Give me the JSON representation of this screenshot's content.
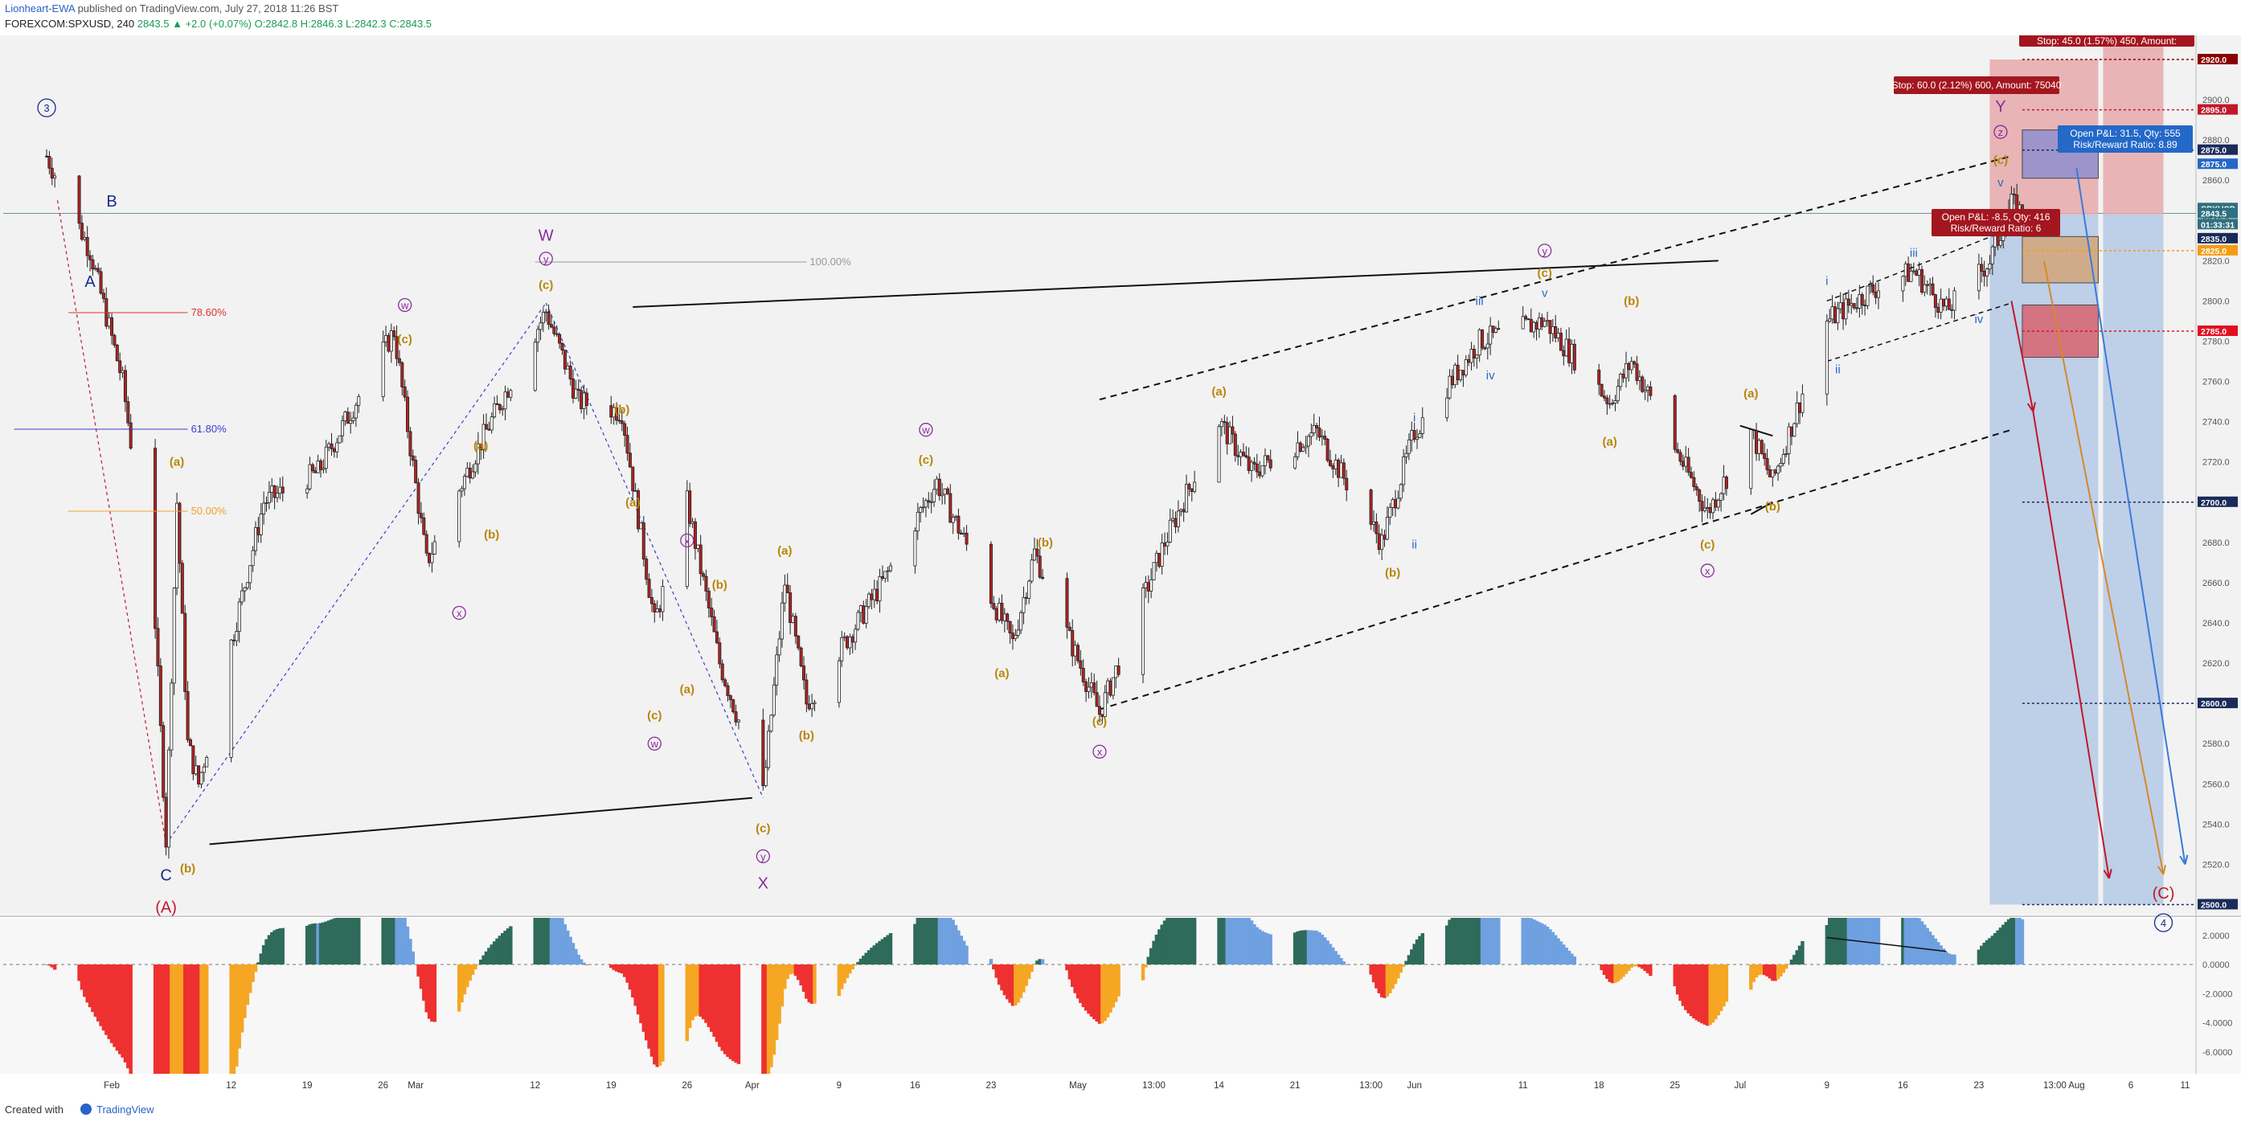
{
  "header": {
    "author": "Lionheart-EWA",
    "published_text": "published on TradingView.com, July 27, 2018 11:26 BST",
    "symbol": "FOREXCOM:SPXUSD, 240",
    "ohlc": "2843.5 ▲ +2.0 (+0.07%) O:2842.8 H:2846.3 L:2842.3 C:2843.5"
  },
  "footer": {
    "created_with": "Created with",
    "brand": "TradingView"
  },
  "colors": {
    "background": "#f2f2f2",
    "candle": "#202020",
    "candle_down_fill": "#b22222",
    "wave_orange": "#b8860b",
    "wave_purple": "#8a2c9b",
    "wave_navy": "#1a2b8c",
    "wave_blue": "#2468c8",
    "wave_red": "#c0182a",
    "osc_green": "#2e6b5a",
    "osc_blue": "#6fa0e0",
    "osc_red": "#ee3030",
    "osc_orange": "#f5a623"
  },
  "chart_data": {
    "type": "candlestick",
    "price_axis": {
      "ylim": [
        2495,
        2932
      ],
      "ticks": [
        2520,
        2540,
        2560,
        2580,
        2620,
        2640,
        2660,
        2680,
        2720,
        2740,
        2760,
        2780,
        2800,
        2820,
        2840,
        2860,
        2880,
        2900
      ]
    },
    "time_axis": {
      "labels": [
        "Feb",
        "12",
        "19",
        "26",
        "Mar",
        "12",
        "19",
        "26",
        "Apr",
        "9",
        "16",
        "23",
        "May",
        "13:00",
        "14",
        "21",
        "13:00",
        "Jun",
        "11",
        "18",
        "25",
        "Jul",
        "9",
        "16",
        "23",
        "13:00",
        "Aug",
        "6",
        "11"
      ]
    },
    "price_path": [
      {
        "date": "2018-01-26",
        "price": 2872
      },
      {
        "date": "2018-01-30",
        "price": 2825
      },
      {
        "date": "2018-02-02",
        "price": 2760
      },
      {
        "date": "2018-02-05",
        "price": 2640
      },
      {
        "date": "2018-02-06",
        "price": 2532
      },
      {
        "date": "2018-02-07",
        "price": 2700
      },
      {
        "date": "2018-02-08",
        "price": 2580
      },
      {
        "date": "2018-02-09",
        "price": 2560
      },
      {
        "date": "2018-02-15",
        "price": 2700
      },
      {
        "date": "2018-02-20",
        "price": 2715
      },
      {
        "date": "2018-02-27",
        "price": 2785
      },
      {
        "date": "2018-03-02",
        "price": 2670
      },
      {
        "date": "2018-03-07",
        "price": 2730
      },
      {
        "date": "2018-03-13",
        "price": 2795
      },
      {
        "date": "2018-03-16",
        "price": 2750
      },
      {
        "date": "2018-03-20",
        "price": 2745
      },
      {
        "date": "2018-03-23",
        "price": 2640
      },
      {
        "date": "2018-03-26",
        "price": 2700
      },
      {
        "date": "2018-03-29",
        "price": 2620
      },
      {
        "date": "2018-04-02",
        "price": 2555
      },
      {
        "date": "2018-04-04",
        "price": 2660
      },
      {
        "date": "2018-04-06",
        "price": 2600
      },
      {
        "date": "2018-04-13",
        "price": 2660
      },
      {
        "date": "2018-04-18",
        "price": 2710
      },
      {
        "date": "2018-04-25",
        "price": 2630
      },
      {
        "date": "2018-04-27",
        "price": 2675
      },
      {
        "date": "2018-05-03",
        "price": 2595
      },
      {
        "date": "2018-05-09",
        "price": 2680
      },
      {
        "date": "2018-05-14",
        "price": 2740
      },
      {
        "date": "2018-05-17",
        "price": 2715
      },
      {
        "date": "2018-05-23",
        "price": 2735
      },
      {
        "date": "2018-05-29",
        "price": 2680
      },
      {
        "date": "2018-06-01",
        "price": 2735
      },
      {
        "date": "2018-06-07",
        "price": 2780
      },
      {
        "date": "2018-06-13",
        "price": 2790
      },
      {
        "date": "2018-06-19",
        "price": 2750
      },
      {
        "date": "2018-06-21",
        "price": 2770
      },
      {
        "date": "2018-06-28",
        "price": 2695
      },
      {
        "date": "2018-07-02",
        "price": 2735
      },
      {
        "date": "2018-07-04",
        "price": 2710
      },
      {
        "date": "2018-07-09",
        "price": 2790
      },
      {
        "date": "2018-07-13",
        "price": 2805
      },
      {
        "date": "2018-07-17",
        "price": 2815
      },
      {
        "date": "2018-07-20",
        "price": 2795
      },
      {
        "date": "2018-07-24",
        "price": 2820
      },
      {
        "date": "2018-07-26",
        "price": 2848
      },
      {
        "date": "2018-07-27",
        "price": 2843.5
      }
    ],
    "price_labels": [
      {
        "text": "2920.0",
        "price": 2920,
        "bg": "#8b0000"
      },
      {
        "text": "2895.0",
        "price": 2895,
        "bg": "#c0182a"
      },
      {
        "text": "2875.0",
        "price": 2875,
        "bg": "#1a2b5a"
      },
      {
        "text": "2875.0",
        "price": 2868,
        "bg": "#2468c8"
      },
      {
        "text": "SPXUSD",
        "price": 2846,
        "bg": "#2f6f7f"
      },
      {
        "text": "2843.5",
        "price": 2843.5,
        "bg": "#2f6f7f"
      },
      {
        "text": "01:33:31",
        "price": 2838,
        "bg": "#2f6f7f"
      },
      {
        "text": "2835.0",
        "price": 2831,
        "bg": "#1a2b5a"
      },
      {
        "text": "2825.0",
        "price": 2825,
        "bg": "#f39c12"
      },
      {
        "text": "2785.0",
        "price": 2785,
        "bg": "#e01020"
      },
      {
        "text": "2700.0",
        "price": 2700,
        "bg": "#1a2b5a"
      },
      {
        "text": "2600.0",
        "price": 2600,
        "bg": "#1a2b5a"
      },
      {
        "text": "2500.0",
        "price": 2500,
        "bg": "#1a2b5a"
      }
    ],
    "fib_levels": [
      {
        "label": "100.00%",
        "price": 2802
      },
      {
        "label": "78.60%",
        "price": 2800
      },
      {
        "label": "61.80%",
        "price": 2743
      },
      {
        "label": "50.00%",
        "price": 2702
      }
    ],
    "positions": [
      {
        "text": "Stop: 60.0 (2.12%) 600, Amount: 75040",
        "type": "stop"
      },
      {
        "text": "Stop: 45.0 (1.57%) 450, Amount:",
        "type": "stop"
      },
      {
        "text": "Open P&L: 31.5, Qty: 555",
        "line2": "Risk/Reward Ratio: 8.89",
        "type": "pnl"
      },
      {
        "text": "Open P&L: -8.5, Qty: 416",
        "line2": "Risk/Reward Ratio: 6",
        "type": "pnl"
      }
    ],
    "wave_labels": [
      {
        "text": "3",
        "circle": true,
        "color": "navy",
        "date": "2018-01-26",
        "price": 2894
      },
      {
        "text": "B",
        "color": "navy",
        "date": "2018-02-01",
        "price": 2847
      },
      {
        "text": "A",
        "color": "navy",
        "date": "2018-01-30",
        "price": 2807
      },
      {
        "text": "C",
        "color": "navy",
        "date": "2018-02-06",
        "price": 2512
      },
      {
        "text": "(A)",
        "color": "red",
        "date": "2018-02-06",
        "price": 2496
      },
      {
        "text": "(a)",
        "color": "orange",
        "date": "2018-02-07",
        "price": 2718
      },
      {
        "text": "(b)",
        "color": "orange",
        "date": "2018-02-08",
        "price": 2516
      },
      {
        "text": "w",
        "circle": true,
        "color": "purple",
        "date": "2018-02-28",
        "price": 2796
      },
      {
        "text": "(c)",
        "color": "orange",
        "date": "2018-02-28",
        "price": 2779
      },
      {
        "text": "(a)",
        "color": "orange",
        "date": "2018-03-07",
        "price": 2726
      },
      {
        "text": "(b)",
        "color": "orange",
        "date": "2018-03-08",
        "price": 2682
      },
      {
        "text": "x",
        "circle": true,
        "color": "purple",
        "date": "2018-03-05",
        "price": 2643
      },
      {
        "text": "W",
        "color": "purple",
        "date": "2018-03-13",
        "price": 2830
      },
      {
        "text": "y",
        "circle": true,
        "color": "purple",
        "date": "2018-03-13",
        "price": 2819
      },
      {
        "text": "(c)",
        "color": "orange",
        "date": "2018-03-13",
        "price": 2806
      },
      {
        "text": "(b)",
        "color": "orange",
        "date": "2018-03-20",
        "price": 2744
      },
      {
        "text": "(a)",
        "color": "orange",
        "date": "2018-03-21",
        "price": 2698
      },
      {
        "text": "x",
        "circle": true,
        "color": "purple",
        "date": "2018-03-26",
        "price": 2679
      },
      {
        "text": "(b)",
        "color": "orange",
        "date": "2018-03-29",
        "price": 2657
      },
      {
        "text": "(c)",
        "color": "orange",
        "date": "2018-03-23",
        "price": 2592
      },
      {
        "text": "w",
        "circle": true,
        "color": "purple",
        "date": "2018-03-23",
        "price": 2578
      },
      {
        "text": "(a)",
        "color": "orange",
        "date": "2018-03-26",
        "price": 2605
      },
      {
        "text": "(c)",
        "color": "orange",
        "date": "2018-04-02",
        "price": 2536
      },
      {
        "text": "y",
        "circle": true,
        "color": "purple",
        "date": "2018-04-02",
        "price": 2522
      },
      {
        "text": "X",
        "color": "purple",
        "date": "2018-04-02",
        "price": 2508
      },
      {
        "text": "(a)",
        "color": "orange",
        "date": "2018-04-04",
        "price": 2674
      },
      {
        "text": "(b)",
        "color": "orange",
        "date": "2018-04-06",
        "price": 2582
      },
      {
        "text": "w",
        "circle": true,
        "color": "purple",
        "date": "2018-04-17",
        "price": 2734
      },
      {
        "text": "(c)",
        "color": "orange",
        "date": "2018-04-17",
        "price": 2719
      },
      {
        "text": "(b)",
        "color": "orange",
        "date": "2018-04-28",
        "price": 2678
      },
      {
        "text": "(a)",
        "color": "orange",
        "date": "2018-04-24",
        "price": 2613
      },
      {
        "text": "(c)",
        "color": "orange",
        "date": "2018-05-03",
        "price": 2589
      },
      {
        "text": "x",
        "circle": true,
        "color": "purple",
        "date": "2018-05-03",
        "price": 2574
      },
      {
        "text": "(a)",
        "color": "orange",
        "date": "2018-05-14",
        "price": 2753
      },
      {
        "text": "(b)",
        "color": "orange",
        "date": "2018-05-30",
        "price": 2663
      },
      {
        "text": "i",
        "color": "blue",
        "date": "2018-06-01",
        "price": 2740
      },
      {
        "text": "ii",
        "color": "blue",
        "date": "2018-06-01",
        "price": 2677
      },
      {
        "text": "iii",
        "color": "blue",
        "date": "2018-06-07",
        "price": 2798
      },
      {
        "text": "iv",
        "color": "blue",
        "date": "2018-06-08",
        "price": 2761
      },
      {
        "text": "y",
        "circle": true,
        "color": "purple",
        "date": "2018-06-13",
        "price": 2823
      },
      {
        "text": "(c)",
        "color": "orange",
        "date": "2018-06-13",
        "price": 2812
      },
      {
        "text": "v",
        "color": "blue",
        "date": "2018-06-13",
        "price": 2802
      },
      {
        "text": "(b)",
        "color": "orange",
        "date": "2018-06-21",
        "price": 2798
      },
      {
        "text": "(a)",
        "color": "orange",
        "date": "2018-06-19",
        "price": 2728
      },
      {
        "text": "(a)",
        "color": "orange",
        "date": "2018-07-02",
        "price": 2752
      },
      {
        "text": "(b)",
        "color": "orange",
        "date": "2018-07-04",
        "price": 2696
      },
      {
        "text": "(c)",
        "color": "orange",
        "date": "2018-06-28",
        "price": 2677
      },
      {
        "text": "x",
        "circle": true,
        "color": "purple",
        "date": "2018-06-28",
        "price": 2664
      },
      {
        "text": "i",
        "color": "blue",
        "date": "2018-07-09",
        "price": 2808
      },
      {
        "text": "ii",
        "color": "blue",
        "date": "2018-07-10",
        "price": 2764
      },
      {
        "text": "iii",
        "color": "blue",
        "date": "2018-07-17",
        "price": 2822
      },
      {
        "text": "iv",
        "color": "blue",
        "date": "2018-07-23",
        "price": 2789
      },
      {
        "text": "v",
        "color": "blue",
        "date": "2018-07-25",
        "price": 2857
      },
      {
        "text": "(c)",
        "color": "orange",
        "date": "2018-07-25",
        "price": 2868
      },
      {
        "text": "z",
        "circle": true,
        "color": "purple",
        "date": "2018-07-25",
        "price": 2882
      },
      {
        "text": "Y",
        "color": "purple",
        "date": "2018-07-25",
        "price": 2894
      },
      {
        "text": "(C)",
        "color": "red",
        "date": "2018-08-09",
        "price": 2503
      },
      {
        "text": "4",
        "circle": true,
        "color": "navy",
        "date": "2018-08-09",
        "price": 2489
      }
    ],
    "oscillator": {
      "ylim": [
        -7.5,
        3.2
      ],
      "ticks": [
        2.0,
        0.0,
        -2.0,
        -4.0,
        -6.0
      ],
      "tick_labels": [
        "2.0000",
        "0.0000",
        "-2.0000",
        "-4.0000",
        "-6.0000"
      ]
    }
  }
}
